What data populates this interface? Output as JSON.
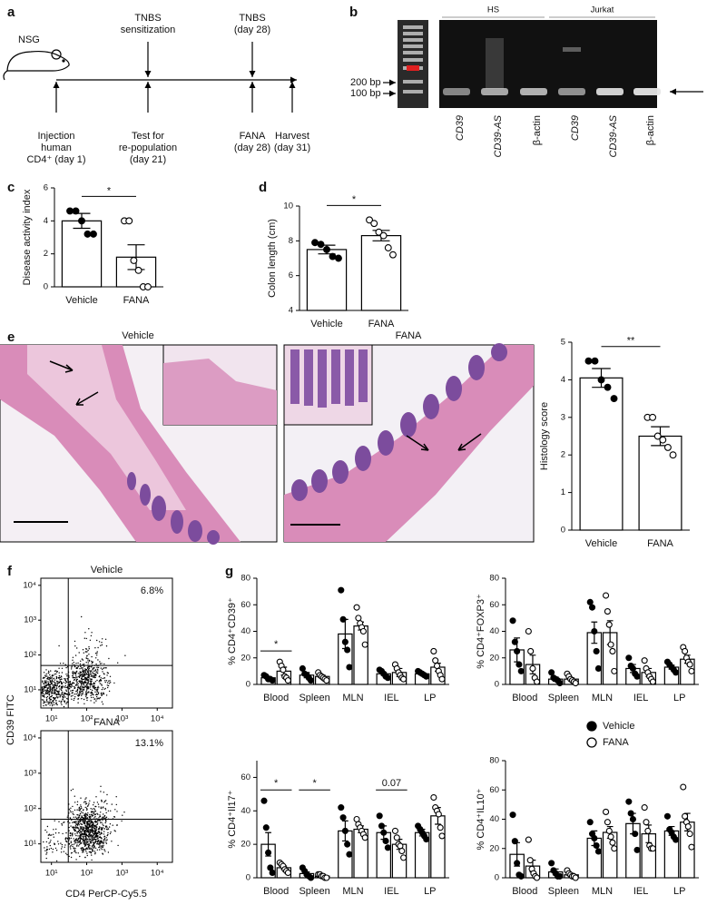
{
  "panel_labels": [
    "a",
    "b",
    "c",
    "d",
    "e",
    "f",
    "g"
  ],
  "timeline": {
    "model": "NSG",
    "events": [
      {
        "below": [
          "Injection",
          "human",
          "CD4⁺ (day 1)"
        ]
      },
      {
        "above": [
          "TNBS",
          "sensitization"
        ],
        "below": [
          "Test for",
          "re-population",
          "(day 21)"
        ]
      },
      {
        "above": [
          "TNBS",
          "(day 28)"
        ],
        "below": [
          "FANA",
          "(day 28)"
        ]
      },
      {
        "below": [
          "Harvest",
          "(day 31)"
        ]
      }
    ]
  },
  "gel": {
    "groups": [
      "HS",
      "Jurkat"
    ],
    "ladder": [
      "200 bp",
      "100 bp"
    ],
    "lanes": [
      "CD39",
      "CD39-AS",
      "β-actin",
      "CD39",
      "CD39-AS",
      "β-actin"
    ]
  },
  "histology": {
    "images": [
      "Vehicle",
      "FANA"
    ]
  },
  "flow": {
    "y_label": "CD39 FITC",
    "x_label": "CD4 PerCP-Cy5.5",
    "scale": "log",
    "xlim": [
      5,
      27000
    ],
    "ylim": [
      3,
      16000
    ],
    "xticks": [
      {
        "value": 10,
        "label": "10¹"
      },
      {
        "value": 100,
        "label": "10²"
      },
      {
        "value": 1000,
        "label": "10³"
      },
      {
        "value": 10000,
        "label": "10⁴"
      }
    ],
    "yticks": [
      {
        "value": 10,
        "label": "10¹"
      },
      {
        "value": 100,
        "label": "10²"
      },
      {
        "value": 1000,
        "label": "10³"
      },
      {
        "value": 10000,
        "label": "10⁴"
      }
    ],
    "gate_x": 30,
    "gate_y": 50,
    "plots": [
      {
        "title": "Vehicle",
        "percentage": "6.8%"
      },
      {
        "title": "FANA",
        "percentage": "13.1%"
      }
    ]
  },
  "chart_data": [
    {
      "type": "bar",
      "y_label": "Disease activity index",
      "categories": [
        "Vehicle",
        "FANA"
      ],
      "values": [
        4.0,
        1.8
      ],
      "errors": [
        0.45,
        0.75
      ],
      "points": [
        [
          4.6,
          4.6,
          4.0,
          3.2,
          3.2
        ],
        [
          4,
          4,
          1.6,
          1,
          0,
          0
        ]
      ],
      "point_fills": [
        "#000000",
        "#ffffff"
      ],
      "ylim": [
        0,
        6
      ],
      "yticks": [
        0,
        2,
        4,
        6
      ],
      "significance": "*"
    },
    {
      "type": "bar",
      "y_label": "Colon length (cm)",
      "categories": [
        "Vehicle",
        "FANA"
      ],
      "values": [
        7.5,
        8.3
      ],
      "errors": [
        0.25,
        0.3
      ],
      "points": [
        [
          7.9,
          7.8,
          7.5,
          7.1,
          7.0
        ],
        [
          9.2,
          9.0,
          8.5,
          8.3,
          7.6,
          7.2
        ]
      ],
      "point_fills": [
        "#000000",
        "#ffffff"
      ],
      "ylim": [
        4,
        10
      ],
      "yticks": [
        4,
        6,
        8,
        10
      ],
      "significance": "*"
    },
    {
      "type": "bar",
      "y_label": "Histology score",
      "categories": [
        "Vehicle",
        "FANA"
      ],
      "values": [
        4.05,
        2.5
      ],
      "errors": [
        0.25,
        0.25
      ],
      "points": [
        [
          4.5,
          4.5,
          4.0,
          3.8,
          3.5
        ],
        [
          3.0,
          3.0,
          2.5,
          2.4,
          2.2,
          2.0
        ]
      ],
      "point_fills": [
        "#000000",
        "#ffffff"
      ],
      "ylim": [
        0,
        5
      ],
      "yticks": [
        0,
        1,
        2,
        3,
        4,
        5
      ],
      "significance": "**"
    },
    {
      "type": "bar",
      "y_label": "% CD4⁺CD39⁺",
      "categories": [
        "Blood",
        "Spleen",
        "MLN",
        "IEL",
        "LP"
      ],
      "ylim": [
        0,
        80
      ],
      "yticks": [
        0,
        20,
        40,
        60,
        80
      ],
      "series": [
        {
          "name": "Vehicle",
          "color": "#000000",
          "values": [
            5,
            7,
            38,
            8,
            8
          ],
          "errors": [
            1,
            2,
            11,
            1,
            1
          ],
          "points": [
            [
              7,
              6,
              4,
              4,
              3
            ],
            [
              12,
              8,
              7,
              5,
              3
            ],
            [
              71,
              49,
              32,
              26,
              13
            ],
            [
              11,
              10,
              8,
              6,
              5
            ],
            [
              10,
              9,
              8,
              7,
              6
            ]
          ]
        },
        {
          "name": "FANA",
          "color": "#ffffff",
          "values": [
            10,
            6,
            44,
            9,
            13
          ],
          "errors": [
            3,
            1,
            3,
            3,
            3
          ],
          "points": [
            [
              17,
              14,
              11,
              6,
              5,
              3
            ],
            [
              9,
              7,
              6,
              5,
              4,
              3
            ],
            [
              58,
              50,
              46,
              43,
              40,
              30
            ],
            [
              15,
              12,
              9,
              7,
              5,
              4
            ],
            [
              25,
              18,
              14,
              10,
              7,
              4
            ]
          ]
        }
      ],
      "significance": [
        {
          "text": "*",
          "category": "Blood"
        }
      ]
    },
    {
      "type": "bar",
      "y_label": "% CD4⁺FOXP3⁺",
      "categories": [
        "Blood",
        "Spleen",
        "MLN",
        "IEL",
        "LP"
      ],
      "ylim": [
        0,
        80
      ],
      "yticks": [
        0,
        20,
        40,
        60,
        80
      ],
      "series": [
        {
          "name": "Vehicle",
          "color": "#000000",
          "values": [
            26,
            4,
            39,
            12,
            13
          ],
          "errors": [
            9,
            1.5,
            8,
            3,
            1.5
          ],
          "points": [
            [
              48,
              32,
              25,
              15,
              10
            ],
            [
              9,
              5,
              4,
              3,
              1
            ],
            [
              62,
              58,
              40,
              25,
              12
            ],
            [
              20,
              14,
              12,
              8,
              6
            ],
            [
              17,
              15,
              13,
              11,
              9
            ]
          ]
        },
        {
          "name": "FANA",
          "color": "#ffffff",
          "values": [
            15,
            4,
            39,
            9,
            19
          ],
          "errors": [
            7,
            1,
            9,
            3,
            3
          ],
          "points": [
            [
              40,
              25,
              12,
              5,
              2
            ],
            [
              8,
              6,
              4,
              3,
              2,
              1
            ],
            [
              67,
              55,
              45,
              30,
              25,
              10
            ],
            [
              18,
              12,
              9,
              6,
              4,
              2
            ],
            [
              28,
              25,
              20,
              17,
              15,
              10
            ]
          ]
        }
      ]
    },
    {
      "type": "bar",
      "y_label": "% CD4⁺Il17⁺",
      "categories": [
        "Blood",
        "Spleen",
        "MLN",
        "IEL",
        "LP"
      ],
      "ylim": [
        0,
        70
      ],
      "yticks": [
        0,
        20,
        40,
        60
      ],
      "series": [
        {
          "name": "Vehicle",
          "color": "#000000",
          "values": [
            20,
            2.5,
            28,
            27,
            27
          ],
          "errors": [
            7,
            1,
            6,
            4,
            2
          ],
          "points": [
            [
              46,
              30,
              15,
              6,
              3
            ],
            [
              6,
              4,
              2,
              1,
              0
            ],
            [
              42,
              36,
              28,
              20,
              14
            ],
            [
              37,
              31,
              27,
              22,
              18
            ],
            [
              31,
              29,
              27,
              25,
              23
            ]
          ]
        },
        {
          "name": "FANA",
          "color": "#ffffff",
          "values": [
            6,
            1,
            29,
            20,
            37
          ],
          "errors": [
            1,
            0.3,
            2,
            3,
            5
          ],
          "points": [
            [
              9,
              8,
              7,
              5,
              4,
              3
            ],
            [
              2,
              2,
              1,
              1,
              0,
              0
            ],
            [
              35,
              32,
              30,
              28,
              26,
              24
            ],
            [
              28,
              24,
              20,
              19,
              16,
              12
            ],
            [
              48,
              42,
              40,
              38,
              30,
              25
            ]
          ]
        }
      ],
      "significance": [
        {
          "text": "*",
          "category": "Blood"
        },
        {
          "text": "*",
          "category": "Spleen"
        },
        {
          "text": "0.07",
          "category": "IEL"
        }
      ]
    },
    {
      "type": "bar",
      "y_label": "% CD4⁺IL10⁺",
      "categories": [
        "Blood",
        "Spleen",
        "MLN",
        "IEL",
        "LP"
      ],
      "ylim": [
        0,
        80
      ],
      "yticks": [
        0,
        20,
        40,
        60,
        80
      ],
      "legend": "top-right",
      "series": [
        {
          "name": "Vehicle",
          "color": "#000000",
          "values": [
            16,
            4,
            27,
            37,
            32
          ],
          "errors": [
            8,
            2,
            5,
            7,
            3
          ],
          "points": [
            [
              43,
              25,
              10,
              2,
              1
            ],
            [
              10,
              5,
              3,
              1,
              1
            ],
            [
              38,
              30,
              27,
              22,
              18
            ],
            [
              52,
              44,
              40,
              30,
              19
            ],
            [
              42,
              33,
              31,
              28,
              26
            ]
          ]
        },
        {
          "name": "FANA",
          "color": "#ffffff",
          "values": [
            8,
            2,
            31,
            30,
            38
          ],
          "errors": [
            4,
            1,
            4,
            6,
            6
          ],
          "points": [
            [
              26,
              12,
              6,
              3,
              1,
              0
            ],
            [
              5,
              3,
              2,
              1,
              1,
              0
            ],
            [
              45,
              38,
              32,
              28,
              24,
              20
            ],
            [
              48,
              38,
              32,
              22,
              20,
              20
            ],
            [
              62,
              42,
              38,
              35,
              30,
              21
            ]
          ]
        }
      ]
    }
  ]
}
